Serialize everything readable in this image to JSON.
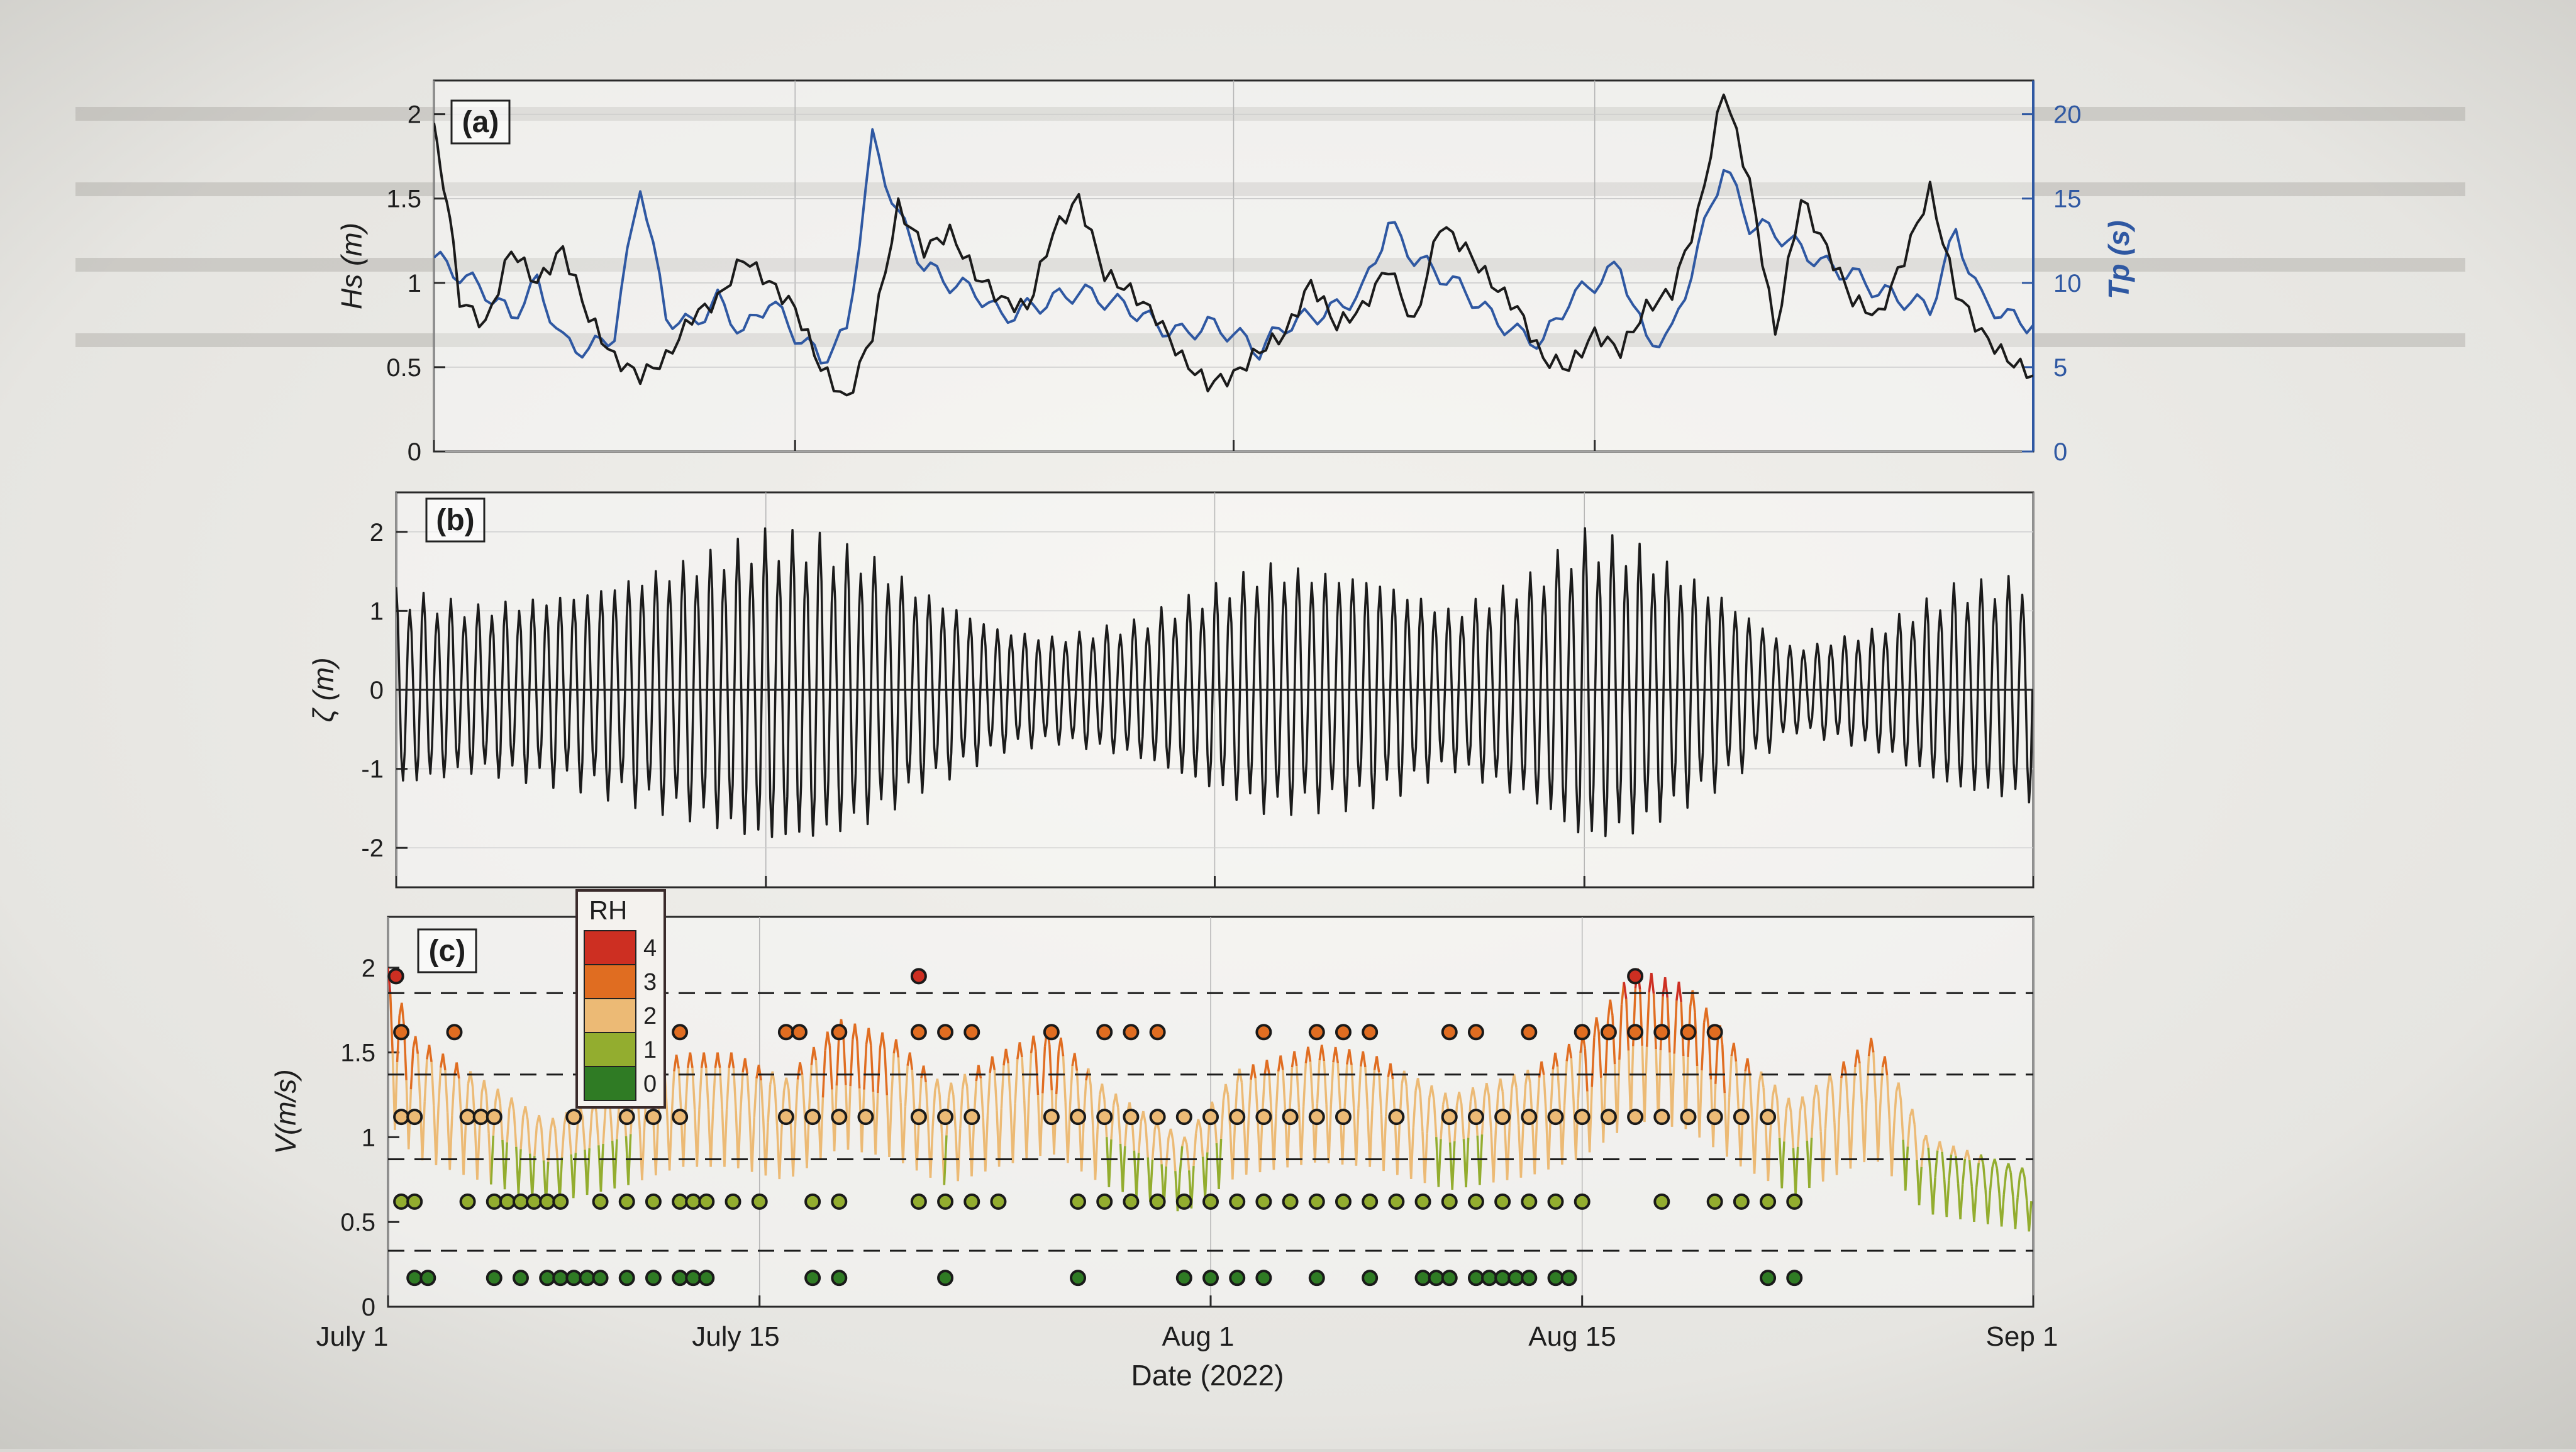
{
  "figure": {
    "x_axis_label": "Date (2022)",
    "x_ticks": [
      {
        "date": "2022-07-01",
        "label": "July 1"
      },
      {
        "date": "2022-07-15",
        "label": "July 15"
      },
      {
        "date": "2022-08-01",
        "label": "Aug 1"
      },
      {
        "date": "2022-08-15",
        "label": "Aug 15"
      },
      {
        "date": "2022-09-01",
        "label": "Sep 1"
      }
    ],
    "x_range": [
      "2022-07-01",
      "2022-09-01"
    ],
    "colors": {
      "hs_line": "#1b1b1b",
      "tp_line": "#2f58a2",
      "tide_line": "#1b1b1b",
      "tp_axis": "#2f58a2",
      "rh_0": "#2f7b24",
      "rh_1": "#93ad2f",
      "rh_2": "#ecba75",
      "rh_3": "#e06d21",
      "rh_4": "#cd2f22"
    }
  },
  "chart_data": [
    {
      "type": "line",
      "panel_label": "(a)",
      "ylabel": "Hs (m)",
      "y2label": "Tp (s)",
      "ylim": [
        0,
        2.2
      ],
      "yticks": [
        "0",
        "0.5",
        "1",
        "1.5",
        "2"
      ],
      "y2lim": [
        0,
        22
      ],
      "y2ticks": [
        "0",
        "5",
        "10",
        "15",
        "20"
      ],
      "grid": true,
      "series": [
        {
          "axis": "left",
          "x": [
            "2022-07-01",
            "2022-07-01T12",
            "2022-07-02",
            "2022-07-03",
            "2022-07-04",
            "2022-07-05",
            "2022-07-06",
            "2022-07-07",
            "2022-07-08",
            "2022-07-09",
            "2022-07-10",
            "2022-07-11",
            "2022-07-12",
            "2022-07-13",
            "2022-07-14",
            "2022-07-15",
            "2022-07-16",
            "2022-07-17",
            "2022-07-18",
            "2022-07-19",
            "2022-07-20",
            "2022-07-21",
            "2022-07-22",
            "2022-07-23",
            "2022-07-24",
            "2022-07-25",
            "2022-07-26",
            "2022-07-27",
            "2022-07-28",
            "2022-07-29",
            "2022-07-30",
            "2022-07-31",
            "2022-08-01",
            "2022-08-02",
            "2022-08-03",
            "2022-08-04",
            "2022-08-05",
            "2022-08-06",
            "2022-08-07",
            "2022-08-08",
            "2022-08-09",
            "2022-08-10",
            "2022-08-11",
            "2022-08-12",
            "2022-08-13",
            "2022-08-14",
            "2022-08-15",
            "2022-08-16",
            "2022-08-17",
            "2022-08-18",
            "2022-08-19",
            "2022-08-20",
            "2022-08-21",
            "2022-08-22",
            "2022-08-23",
            "2022-08-24",
            "2022-08-25",
            "2022-08-26",
            "2022-08-27",
            "2022-08-28",
            "2022-08-29",
            "2022-08-30",
            "2022-08-31",
            "2022-09-01"
          ],
          "values": [
            1.9,
            1.5,
            0.9,
            0.75,
            1.2,
            1.0,
            1.2,
            0.8,
            0.55,
            0.45,
            0.55,
            0.8,
            0.9,
            1.15,
            1.0,
            0.85,
            0.5,
            0.3,
            0.7,
            1.45,
            1.2,
            1.3,
            1.05,
            0.9,
            0.85,
            1.3,
            1.5,
            1.05,
            0.95,
            0.8,
            0.55,
            0.4,
            0.45,
            0.6,
            0.7,
            1.0,
            0.75,
            0.85,
            1.1,
            0.75,
            1.35,
            1.2,
            1.0,
            0.85,
            0.55,
            0.5,
            0.7,
            0.6,
            0.85,
            0.95,
            1.4,
            2.15,
            1.6,
            0.7,
            1.5,
            1.2,
            0.9,
            0.8,
            1.15,
            1.55,
            0.95,
            0.7,
            0.55,
            0.45
          ]
        },
        {
          "axis": "right",
          "x": [
            "2022-07-01",
            "2022-07-02",
            "2022-07-03",
            "2022-07-04",
            "2022-07-05",
            "2022-07-06",
            "2022-07-07",
            "2022-07-08",
            "2022-07-09",
            "2022-07-10",
            "2022-07-11",
            "2022-07-12",
            "2022-07-13",
            "2022-07-14",
            "2022-07-15",
            "2022-07-16",
            "2022-07-17",
            "2022-07-18",
            "2022-07-19",
            "2022-07-20",
            "2022-07-21",
            "2022-07-22",
            "2022-07-23",
            "2022-07-24",
            "2022-07-25",
            "2022-07-26",
            "2022-07-27",
            "2022-07-28",
            "2022-07-29",
            "2022-07-30",
            "2022-07-31",
            "2022-08-01",
            "2022-08-02",
            "2022-08-03",
            "2022-08-04",
            "2022-08-05",
            "2022-08-06",
            "2022-08-07",
            "2022-08-08",
            "2022-08-09",
            "2022-08-10",
            "2022-08-11",
            "2022-08-12",
            "2022-08-13",
            "2022-08-14",
            "2022-08-15",
            "2022-08-16",
            "2022-08-17",
            "2022-08-18",
            "2022-08-19",
            "2022-08-20",
            "2022-08-21",
            "2022-08-22",
            "2022-08-23",
            "2022-08-24",
            "2022-08-25",
            "2022-08-26",
            "2022-08-27",
            "2022-08-28",
            "2022-08-29",
            "2022-08-30",
            "2022-08-31",
            "2022-09-01"
          ],
          "values": [
            11.5,
            10.5,
            9.5,
            8.0,
            10.0,
            6.5,
            6.0,
            7.0,
            16.0,
            8.0,
            7.5,
            9.0,
            7.0,
            9.0,
            7.0,
            5.5,
            7.0,
            18.5,
            14.0,
            11.0,
            10.0,
            9.5,
            8.0,
            8.5,
            9.0,
            9.5,
            9.0,
            8.5,
            7.5,
            7.0,
            7.5,
            7.0,
            6.0,
            7.5,
            8.0,
            8.5,
            9.5,
            13.5,
            11.5,
            10.5,
            9.5,
            8.0,
            7.0,
            6.5,
            9.0,
            10.0,
            11.0,
            6.5,
            7.0,
            12.0,
            17.0,
            13.5,
            13.0,
            12.0,
            11.0,
            10.5,
            9.5,
            9.0,
            8.5,
            13.0,
            9.0,
            8.0,
            7.5
          ]
        }
      ]
    },
    {
      "type": "line",
      "panel_label": "(b)",
      "ylabel": "ζ (m)",
      "ylim": [
        -2.5,
        2.5
      ],
      "yticks": [
        "-2",
        "-1",
        "0",
        "1",
        "2"
      ],
      "grid": true,
      "series": [
        {
          "description_free": true,
          "cycle_hours": 12.42,
          "envelope_x": [
            "2022-07-01",
            "2022-07-04",
            "2022-07-08",
            "2022-07-12",
            "2022-07-15",
            "2022-07-17",
            "2022-07-19",
            "2022-07-21",
            "2022-07-24",
            "2022-07-26",
            "2022-07-29",
            "2022-08-01",
            "2022-08-03",
            "2022-08-07",
            "2022-08-10",
            "2022-08-13",
            "2022-08-15",
            "2022-08-17",
            "2022-08-20",
            "2022-08-23",
            "2022-08-26",
            "2022-08-29",
            "2022-09-01"
          ],
          "envelope_values": [
            1.3,
            1.1,
            1.3,
            1.7,
            2.05,
            2.0,
            1.75,
            1.3,
            0.8,
            0.7,
            0.9,
            1.35,
            1.65,
            1.5,
            1.05,
            1.5,
            2.05,
            1.9,
            1.3,
            0.55,
            0.8,
            1.35,
            1.5
          ]
        }
      ]
    },
    {
      "type": "scatter",
      "panel_label": "(c)",
      "ylabel": "V(m/s)",
      "ylim": [
        0,
        2.3
      ],
      "yticks": [
        "0",
        "0.5",
        "1",
        "1.5",
        "2"
      ],
      "grid": true,
      "legend": {
        "title": "RH",
        "placement": "top-left",
        "entries": [
          "4",
          "3",
          "2",
          "1",
          "0"
        ]
      },
      "threshold_lines": [
        0.33,
        0.87,
        1.37,
        1.85
      ],
      "velocity_envelope": {
        "x": [
          "2022-07-01",
          "2022-07-02",
          "2022-07-04",
          "2022-07-07",
          "2022-07-10",
          "2022-07-12",
          "2022-07-14",
          "2022-07-16",
          "2022-07-18",
          "2022-07-20",
          "2022-07-22",
          "2022-07-24",
          "2022-07-26",
          "2022-07-28",
          "2022-07-31",
          "2022-08-02",
          "2022-08-05",
          "2022-08-07",
          "2022-08-10",
          "2022-08-13",
          "2022-08-15",
          "2022-08-17",
          "2022-08-19",
          "2022-08-21",
          "2022-08-23",
          "2022-08-26",
          "2022-08-28",
          "2022-08-31",
          "2022-09-01"
        ],
        "values": [
          2.0,
          1.6,
          1.4,
          1.1,
          1.3,
          1.5,
          1.5,
          1.35,
          1.7,
          1.6,
          1.3,
          1.5,
          1.65,
          1.3,
          1.0,
          1.4,
          1.55,
          1.5,
          1.25,
          1.4,
          1.6,
          2.0,
          1.9,
          1.5,
          1.2,
          1.6,
          1.0,
          0.85,
          0.8
        ]
      },
      "dot_rows": [
        0.17,
        0.62,
        1.12,
        1.62,
        1.95
      ],
      "dots_x_days": [
        [
          1,
          1.5,
          4,
          5,
          6,
          6.5,
          7,
          7.5,
          8,
          9,
          10,
          11,
          11.5,
          12,
          16,
          17,
          21,
          26,
          30,
          31,
          32,
          33,
          35,
          37,
          39,
          39.5,
          40,
          41,
          41.5,
          42,
          42.5,
          43,
          44,
          44.5,
          52,
          53
        ],
        [
          0.5,
          1,
          3,
          4,
          4.5,
          5,
          5.5,
          6,
          6.5,
          8,
          9,
          10,
          11,
          11.5,
          12,
          13,
          14,
          16,
          17,
          20,
          21,
          22,
          23,
          26,
          27,
          28,
          29,
          30,
          31,
          32,
          33,
          34,
          35,
          36,
          37,
          38,
          39,
          40,
          41,
          42,
          43,
          44,
          45,
          48,
          50,
          51,
          52,
          53
        ],
        [
          0.5,
          1,
          3,
          3.5,
          4,
          7,
          9,
          10,
          11,
          15,
          16,
          17,
          18,
          20,
          21,
          22,
          25,
          26,
          27,
          28,
          29,
          30,
          31,
          32,
          33,
          34,
          35,
          36,
          38,
          40,
          41,
          42,
          43,
          44,
          45,
          46,
          47,
          48,
          49,
          50,
          51,
          52
        ],
        [
          0.5,
          2.5,
          9,
          10,
          11,
          15,
          15.5,
          17,
          20,
          21,
          22,
          25,
          27,
          28,
          29,
          33,
          35,
          36,
          37,
          40,
          41,
          43,
          45,
          46,
          47,
          48,
          49,
          50
        ],
        [
          0.3,
          20,
          47
        ]
      ]
    }
  ]
}
